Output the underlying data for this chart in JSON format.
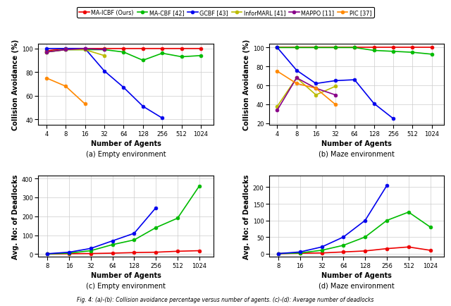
{
  "legend_entries": [
    {
      "label": "MA-ICBF (Ours)",
      "color": "#EE0000",
      "marker": "o"
    },
    {
      "label": "MA-CBF [42]",
      "color": "#00BB00",
      "marker": "o"
    },
    {
      "label": "GCBF [43]",
      "color": "#0000EE",
      "marker": "o"
    },
    {
      "label": "InforMARL [41]",
      "color": "#BBBB00",
      "marker": "o"
    },
    {
      "label": "MAPPO [11]",
      "color": "#880088",
      "marker": "o"
    },
    {
      "label": "PIC [37]",
      "color": "#FF8800",
      "marker": "o"
    }
  ],
  "subplot_a": {
    "title": "(a) Empty environment",
    "xlabel": "Number of Agents",
    "ylabel": "Collision Avoidance (%)",
    "xticklabels": [
      "4",
      "8",
      "16",
      "32",
      "64",
      "128",
      "256",
      "512",
      "1024"
    ],
    "xlim_log": [
      3.0,
      1600
    ],
    "ylim": [
      35,
      104
    ],
    "yticks": [
      40,
      60,
      80,
      100
    ],
    "series": {
      "MA-ICBF": {
        "x": [
          4,
          8,
          16,
          32,
          64,
          128,
          256,
          512,
          1024
        ],
        "y": [
          98,
          100,
          100,
          100,
          100,
          100,
          100,
          100,
          100
        ]
      },
      "MA-CBF": {
        "x": [
          4,
          8,
          16,
          32,
          64,
          128,
          256,
          512,
          1024
        ],
        "y": [
          97,
          99,
          99,
          99,
          97,
          90,
          96,
          93,
          94
        ]
      },
      "GCBF": {
        "x": [
          4,
          8,
          16,
          32,
          64,
          128,
          256
        ],
        "y": [
          100,
          100,
          100,
          81,
          67,
          51,
          41
        ]
      },
      "InforMARL": {
        "x": [
          4,
          8,
          16,
          32
        ],
        "y": [
          97,
          99,
          99,
          94
        ]
      },
      "MAPPO": {
        "x": [
          4,
          8,
          16,
          32
        ],
        "y": [
          97,
          99,
          100,
          99
        ]
      },
      "PIC": {
        "x": [
          4,
          8,
          16
        ],
        "y": [
          75,
          68,
          53
        ]
      }
    }
  },
  "subplot_b": {
    "title": "(b) Maze environment",
    "xlabel": "Number of Agents",
    "ylabel": "Collision Avoidance (%)",
    "xticklabels": [
      "4",
      "8",
      "16",
      "32",
      "64",
      "128",
      "256",
      "512",
      "1024"
    ],
    "xlim_log": [
      3.0,
      1600
    ],
    "ylim": [
      18,
      104
    ],
    "yticks": [
      20,
      40,
      60,
      80,
      100
    ],
    "series": {
      "MA-ICBF": {
        "x": [
          4,
          8,
          16,
          32,
          64,
          128,
          256,
          512,
          1024
        ],
        "y": [
          100,
          100,
          100,
          100,
          100,
          100,
          100,
          100,
          100
        ]
      },
      "MA-CBF": {
        "x": [
          4,
          8,
          16,
          32,
          64,
          128,
          256,
          512,
          1024
        ],
        "y": [
          100,
          100,
          100,
          100,
          100,
          97,
          96,
          95,
          93
        ]
      },
      "GCBF": {
        "x": [
          4,
          8,
          16,
          32,
          64,
          128,
          256
        ],
        "y": [
          100,
          76,
          62,
          65,
          66,
          41,
          25
        ]
      },
      "InforMARL": {
        "x": [
          4,
          8,
          16,
          32
        ],
        "y": [
          38,
          68,
          50,
          59
        ]
      },
      "MAPPO": {
        "x": [
          4,
          8,
          16,
          32
        ],
        "y": [
          34,
          68,
          57,
          50
        ]
      },
      "PIC": {
        "x": [
          4,
          8,
          16,
          32
        ],
        "y": [
          75,
          62,
          57,
          40
        ]
      }
    }
  },
  "subplot_c": {
    "title": "(c) Empty environment",
    "xlabel": "Number of Agents",
    "ylabel": "Avg. No: of Deadlocks",
    "xticklabels": [
      "8",
      "16",
      "32",
      "64",
      "128",
      "256",
      "512",
      "1024"
    ],
    "xlim_log": [
      6.0,
      1600
    ],
    "ylim": [
      -15,
      415
    ],
    "yticks": [
      0,
      100,
      200,
      300,
      400
    ],
    "series": {
      "MA-ICBF": {
        "x": [
          8,
          16,
          32,
          64,
          128,
          256,
          512,
          1024
        ],
        "y": [
          0,
          2,
          3,
          5,
          8,
          10,
          15,
          18
        ]
      },
      "MA-CBF": {
        "x": [
          8,
          16,
          32,
          64,
          128,
          256,
          512,
          1024
        ],
        "y": [
          1,
          5,
          18,
          50,
          75,
          140,
          190,
          360
        ]
      },
      "GCBF": {
        "x": [
          8,
          16,
          32,
          64,
          128,
          256
        ],
        "y": [
          2,
          10,
          30,
          70,
          110,
          245
        ]
      }
    }
  },
  "subplot_d": {
    "title": "(d) Maze environment",
    "xlabel": "Number of Agents",
    "ylabel": "Avg. No: of Deadlocks",
    "xticklabels": [
      "8",
      "16",
      "32",
      "64",
      "128",
      "256",
      "512",
      "1024"
    ],
    "xlim_log": [
      6.0,
      1600
    ],
    "ylim": [
      -10,
      235
    ],
    "yticks": [
      0,
      50,
      100,
      150,
      200
    ],
    "series": {
      "MA-ICBF": {
        "x": [
          8,
          16,
          32,
          64,
          128,
          256,
          512,
          1024
        ],
        "y": [
          0,
          1,
          2,
          5,
          8,
          15,
          20,
          10
        ]
      },
      "MA-CBF": {
        "x": [
          8,
          16,
          32,
          64,
          128,
          256,
          512,
          1024
        ],
        "y": [
          0,
          2,
          10,
          25,
          50,
          100,
          125,
          80
        ]
      },
      "GCBF": {
        "x": [
          8,
          16,
          32,
          64,
          128,
          256
        ],
        "y": [
          0,
          5,
          20,
          50,
          100,
          205
        ]
      }
    }
  },
  "fig_caption": "Fig. 4: (a)-(b): Collision avoidance percentage versus number of agents. (c)-(d): Average number of deadlocks",
  "colors": {
    "MA-ICBF": "#EE0000",
    "MA-CBF": "#00BB00",
    "GCBF": "#0000EE",
    "InforMARL": "#BBBB00",
    "MAPPO": "#880088",
    "PIC": "#FF8800"
  },
  "background_color": "#FFFFFF",
  "grid_color": "#CCCCCC"
}
